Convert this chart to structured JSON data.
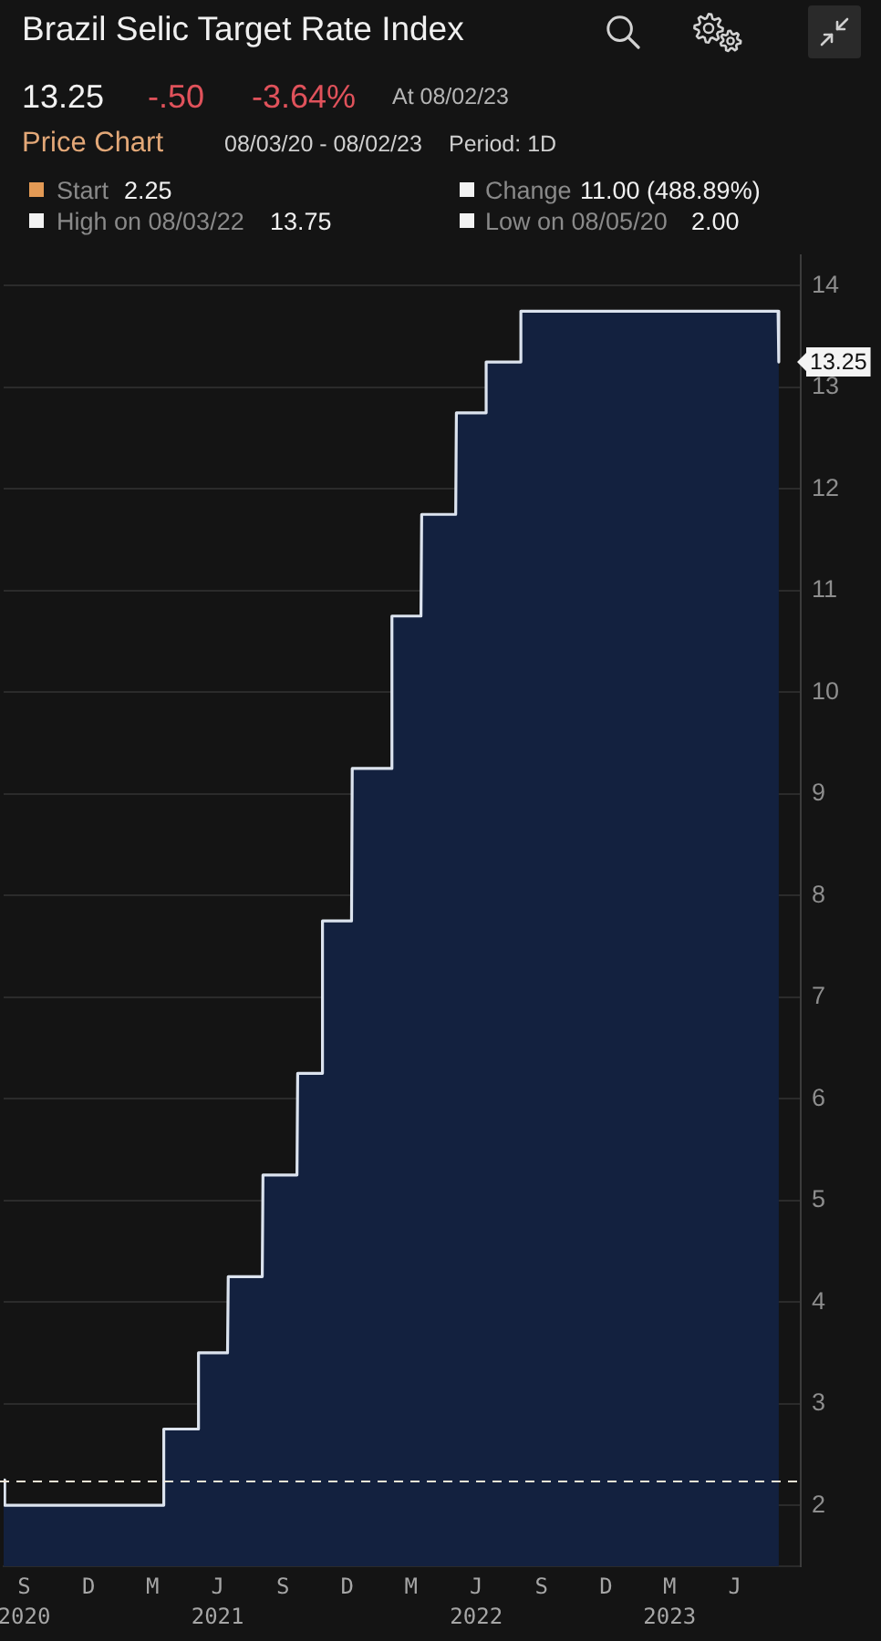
{
  "chart_data": {
    "type": "area",
    "title": "Brazil Selic Target Rate Index",
    "x": [
      "2020-08-03",
      "2020-08-04",
      "2020-08-05",
      "2021-03-16",
      "2021-03-17",
      "2021-05-04",
      "2021-05-05",
      "2021-06-15",
      "2021-06-16",
      "2021-08-03",
      "2021-08-04",
      "2021-09-21",
      "2021-09-22",
      "2021-10-26",
      "2021-10-27",
      "2021-12-07",
      "2021-12-08",
      "2022-02-01",
      "2022-02-02",
      "2022-03-15",
      "2022-03-16",
      "2022-05-03",
      "2022-05-04",
      "2022-06-14",
      "2022-06-15",
      "2022-08-02",
      "2022-08-03",
      "2023-08-01",
      "2023-08-02"
    ],
    "values": [
      2.25,
      2.25,
      2.0,
      2.0,
      2.75,
      2.75,
      3.5,
      3.5,
      4.25,
      4.25,
      5.25,
      5.25,
      6.25,
      6.25,
      7.75,
      7.75,
      9.25,
      9.25,
      10.75,
      10.75,
      11.75,
      11.75,
      12.75,
      12.75,
      13.25,
      13.25,
      13.75,
      13.75,
      13.25
    ],
    "color": "#13213f",
    "xlim": [
      "2020-08-03",
      "2023-09-02"
    ],
    "xticks": [
      {
        "value": "2020-09-01",
        "label": "S\n2020"
      },
      {
        "value": "2020-12-01",
        "label": "D"
      },
      {
        "value": "2021-03-01",
        "label": "M"
      },
      {
        "value": "2021-06-01",
        "label": "J\n2021"
      },
      {
        "value": "2021-09-01",
        "label": "S"
      },
      {
        "value": "2021-12-01",
        "label": "D"
      },
      {
        "value": "2022-03-01",
        "label": "M"
      },
      {
        "value": "2022-06-01",
        "label": "J\n2022"
      },
      {
        "value": "2022-09-01",
        "label": "S"
      },
      {
        "value": "2022-12-01",
        "label": "D"
      },
      {
        "value": "2023-03-01",
        "label": "M\n2023"
      },
      {
        "value": "2023-06-01",
        "label": "J"
      }
    ],
    "ylim": [
      1.4,
      14.3
    ],
    "yticks": [
      2,
      3,
      4,
      5,
      6,
      7,
      8,
      9,
      10,
      11,
      12,
      13,
      14
    ],
    "grid": "y",
    "legend": false,
    "marker": "none",
    "line_style": "solid",
    "ref_lines": [
      {
        "axis": "y",
        "value": 2.25,
        "color": "#f2e6d6",
        "line_style": "dashed"
      }
    ],
    "annotations": [
      "13.25",
      "-.50",
      "-3.64%",
      "At 08/02/23",
      "Price Chart",
      "08/03/20 - 08/02/23",
      "Period: 1D",
      "Start",
      "2.25",
      "Change",
      "11.00 (488.89%)",
      "High on 08/03/22",
      "13.75",
      "Low on 08/05/20",
      "2.00",
      {
        "text": "13.25",
        "x": "2023-08-02",
        "y": 13.25
      }
    ]
  }
}
